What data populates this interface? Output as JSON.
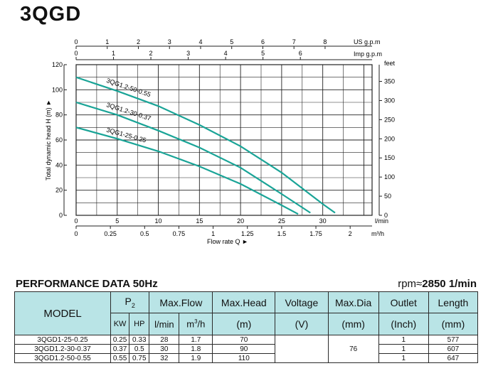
{
  "title": "3QGD",
  "chart_data": {
    "type": "line",
    "top_axis1": {
      "label": "US g.p.m",
      "ticks": [
        0,
        1,
        2,
        3,
        4,
        5,
        6,
        7,
        8
      ]
    },
    "top_axis2": {
      "label": "Imp g.p.m",
      "ticks": [
        0,
        1,
        2,
        3,
        4,
        5,
        6
      ]
    },
    "left_axis": {
      "label": "Total dynamic head H (m) ►",
      "range": [
        0,
        120
      ],
      "ticks": [
        0,
        20,
        40,
        60,
        80,
        100,
        120
      ]
    },
    "right_axis": {
      "label": "feet",
      "ticks": [
        0,
        50,
        100,
        150,
        200,
        250,
        300,
        350
      ]
    },
    "bottom_axis1": {
      "label": "l/min",
      "range": [
        0,
        35
      ],
      "ticks": [
        0,
        5,
        10,
        15,
        20,
        25,
        30
      ]
    },
    "bottom_axis2": {
      "label": "m³/h",
      "ticks": [
        "0",
        "0.25",
        "0.5",
        "0.75",
        "1",
        "1.25",
        "1.5",
        "1.75",
        "2"
      ]
    },
    "xlabel": "Flow rate Q ►",
    "series": [
      {
        "name": "3QG1.2-50-0.55",
        "x": [
          0,
          5,
          10,
          15,
          20,
          25,
          30,
          31.5
        ],
        "y": [
          110,
          99,
          87,
          72,
          55,
          34,
          9,
          2
        ]
      },
      {
        "name": "3QG1.2-30-0.37",
        "x": [
          0,
          5,
          10,
          15,
          20,
          25,
          28.5
        ],
        "y": [
          90,
          80,
          67.5,
          54,
          38,
          17,
          2
        ]
      },
      {
        "name": "3QG1-25-0.25",
        "x": [
          0,
          5,
          10,
          15,
          20,
          25,
          27
        ],
        "y": [
          70,
          61,
          51,
          39,
          25,
          8,
          1
        ]
      }
    ]
  },
  "performance": {
    "heading": "PERFORMANCE DATA 50Hz",
    "rpm_prefix": "rpm≈",
    "rpm_value": "2850  1/min",
    "headers": {
      "model": "MODEL",
      "p2": "P",
      "p2_sub": "2",
      "kw": "KW",
      "hp": "HP",
      "max_flow": "Max.Flow",
      "lmin": "l/min",
      "m3h_base": "m",
      "m3h_sup": "3",
      "m3h_rest": "/h",
      "max_head": "Max.Head",
      "max_head_unit": "(m)",
      "voltage": "Voltage",
      "voltage_unit": "(V)",
      "max_dia": "Max.Dia",
      "max_dia_unit": "(mm)",
      "outlet": "Outlet",
      "outlet_unit": "(Inch)",
      "length": "Length",
      "length_unit": "(mm)"
    },
    "rows": [
      {
        "model": "3QGD1-25-0.25",
        "kw": "0.25",
        "hp": "0.33",
        "lmin": "28",
        "m3h": "1.7",
        "head": "70",
        "outlet": "1",
        "length": "577"
      },
      {
        "model": "3QGD1.2-30-0.37",
        "kw": "0.37",
        "hp": "0.5",
        "lmin": "30",
        "m3h": "1.8",
        "head": "90",
        "outlet": "1",
        "length": "607"
      },
      {
        "model": "3QGD1.2-50-0.55",
        "kw": "0.55",
        "hp": "0.75",
        "lmin": "32",
        "m3h": "1.9",
        "head": "110",
        "outlet": "1",
        "length": "647"
      }
    ],
    "voltage": "",
    "max_dia": "76"
  },
  "colors": {
    "curve": "#1aa497",
    "grid": "#222222",
    "header_bg": "#b9e4e6"
  }
}
